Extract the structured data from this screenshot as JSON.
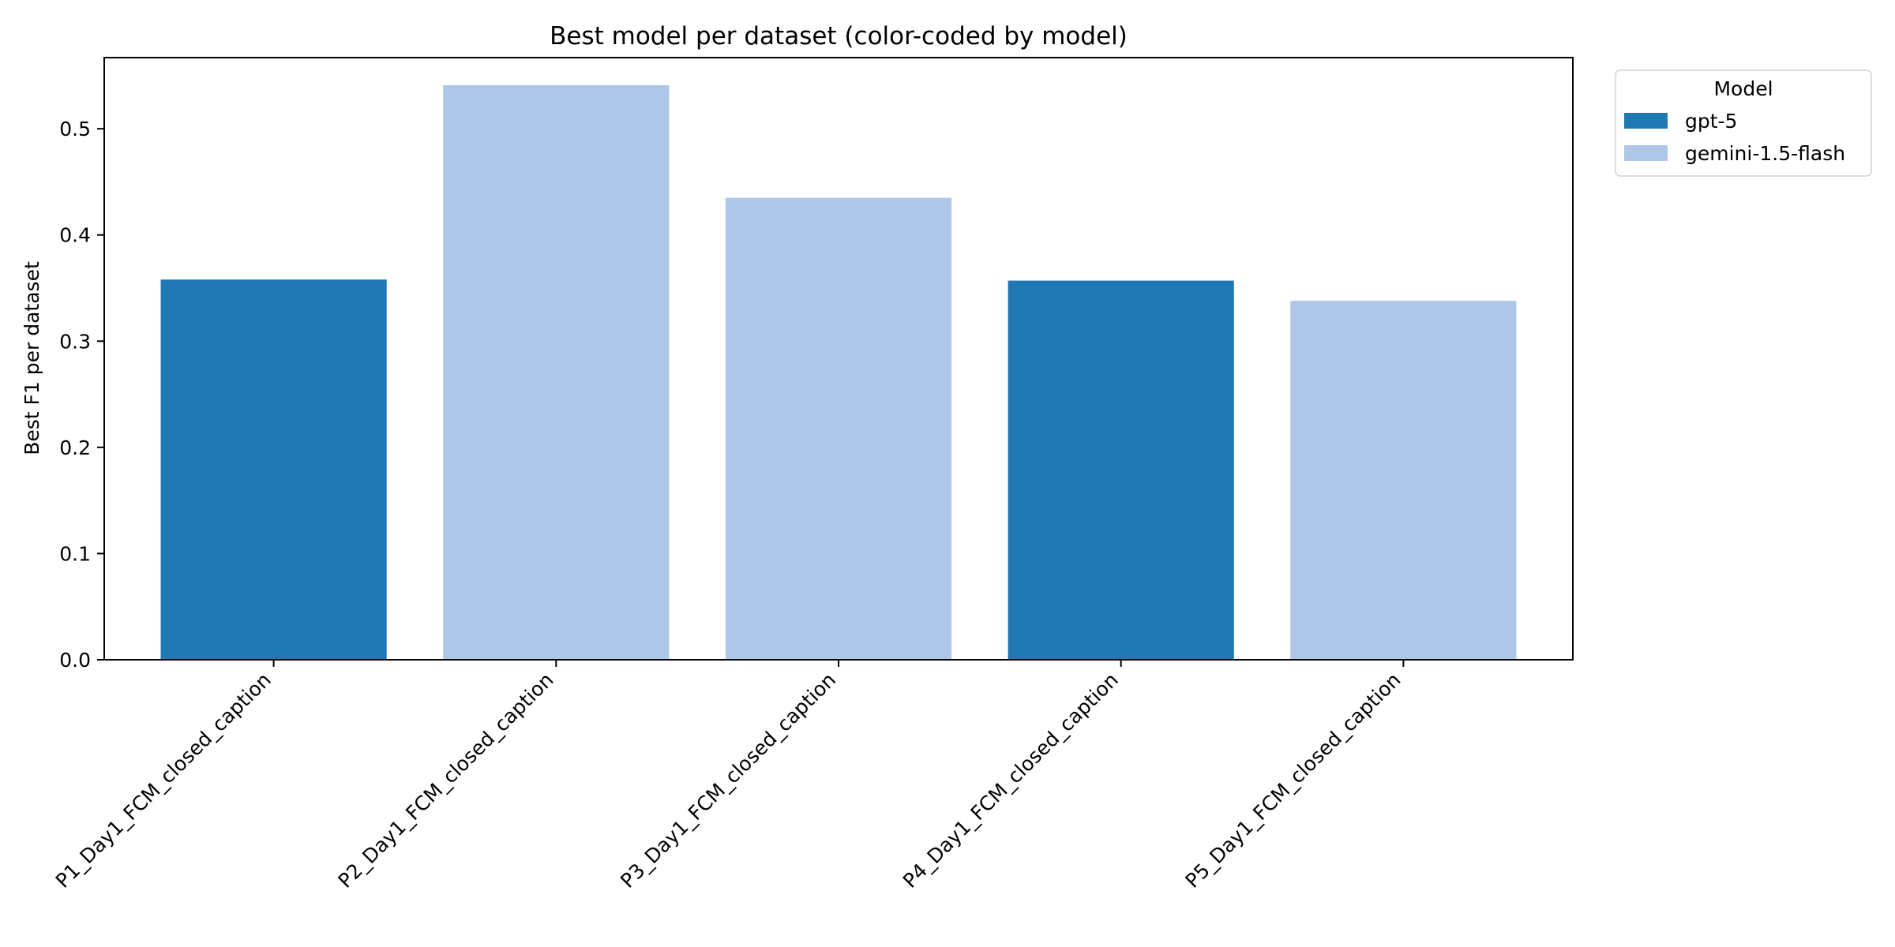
{
  "chart_data": {
    "type": "bar",
    "title": "Best model per dataset (color-coded by model)",
    "xlabel": "",
    "ylabel": "Best F1 per dataset",
    "categories": [
      "P1_Day1_FCM_closed_caption",
      "P2_Day1_FCM_closed_caption",
      "P3_Day1_FCM_closed_caption",
      "P4_Day1_FCM_closed_caption",
      "P5_Day1_FCM_closed_caption"
    ],
    "values": [
      0.358,
      0.541,
      0.435,
      0.357,
      0.338
    ],
    "best_model": [
      "gpt-5",
      "gemini-1.5-flash",
      "gemini-1.5-flash",
      "gpt-5",
      "gemini-1.5-flash"
    ],
    "ylim": [
      0,
      0.567
    ],
    "yticks": [
      0.0,
      0.1,
      0.2,
      0.3,
      0.4,
      0.5
    ],
    "ytick_labels": [
      "0.0",
      "0.1",
      "0.2",
      "0.3",
      "0.4",
      "0.5"
    ],
    "grid": false,
    "legend": {
      "title": "Model",
      "placement": "outside-top-right",
      "entries": [
        {
          "label": "gpt-5",
          "color": "#1f77b4"
        },
        {
          "label": "gemini-1.5-flash",
          "color": "#aec7e8"
        }
      ]
    }
  }
}
